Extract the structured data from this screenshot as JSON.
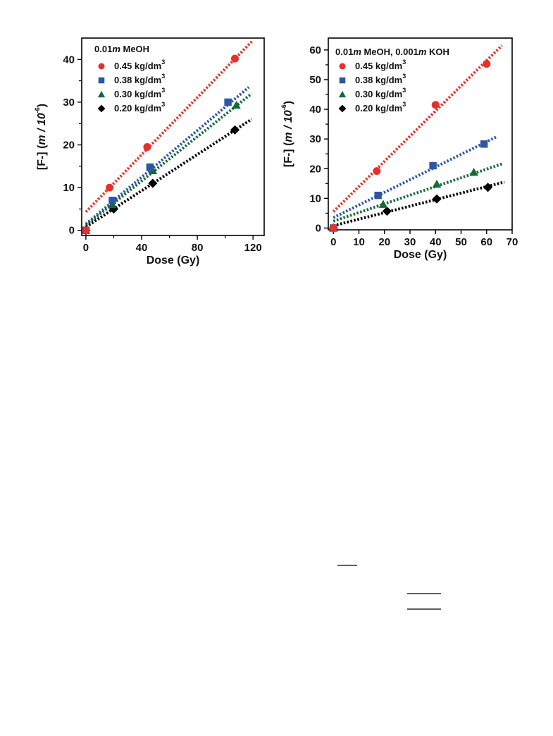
{
  "chart_data": [
    {
      "type": "scatter",
      "title": "",
      "xlabel": "Dose (Gy)",
      "ylabel_main": "[F-]",
      "ylabel_unit": "(m / 10",
      "ylabel_exp": "-6",
      "ylabel_close": ")",
      "xlim": [
        -3,
        128
      ],
      "ylim": [
        -1.2,
        45
      ],
      "xticks": [
        0,
        40,
        80,
        120
      ],
      "yticks": [
        0,
        10,
        20,
        30,
        40
      ],
      "grid": false,
      "legend_position": "top-left",
      "legend_title_prefix": "0.01",
      "legend_title_italic": "m",
      "legend_title_suffix": " MeOH",
      "series": [
        {
          "name": "0.45 kg/dm",
          "name_sup": "3",
          "color": "#e8302a",
          "marker": "circle",
          "x": [
            0,
            17,
            44,
            107
          ],
          "y": [
            0,
            10,
            19.5,
            40.2
          ],
          "fit": {
            "x": [
              0,
              120
            ],
            "y": [
              4.3,
              44.5
            ]
          }
        },
        {
          "name": "0.38 kg/dm",
          "name_sup": "3",
          "color": "#2f55a4",
          "marker": "square",
          "x": [
            0,
            19,
            46,
            102
          ],
          "y": [
            0,
            7,
            14.8,
            30
          ],
          "fit": {
            "x": [
              0,
              117
            ],
            "y": [
              1.5,
              33.5
            ]
          }
        },
        {
          "name": "0.30 kg/dm",
          "name_sup": "3",
          "color": "#17693a",
          "marker": "triangle",
          "x": [
            0,
            19,
            48,
            108
          ],
          "y": [
            0,
            6,
            14,
            29.3
          ],
          "fit": {
            "x": [
              0,
              119
            ],
            "y": [
              1.2,
              32
            ]
          }
        },
        {
          "name": "0.20 kg/dm",
          "name_sup": "3",
          "color": "#000000",
          "marker": "diamond",
          "x": [
            0,
            20,
            48,
            107
          ],
          "y": [
            0,
            5,
            11,
            23.5
          ],
          "fit": {
            "x": [
              0,
              119
            ],
            "y": [
              0.8,
              26
            ]
          }
        }
      ]
    },
    {
      "type": "scatter",
      "title": "",
      "xlabel": "Dose (Gy)",
      "ylabel_main": "[F-]",
      "ylabel_unit": "(m / 10",
      "ylabel_exp": "-6",
      "ylabel_close": ")",
      "xlim": [
        -2,
        70
      ],
      "ylim": [
        -0.6,
        64
      ],
      "xticks": [
        0,
        10,
        20,
        30,
        40,
        50,
        60,
        70
      ],
      "yticks": [
        0,
        10,
        20,
        30,
        40,
        50,
        60
      ],
      "grid": false,
      "legend_position": "top-left",
      "legend_title_prefix": "0.01",
      "legend_title_italic": "m",
      "legend_title_suffix": " MeOH, 0.001",
      "legend_title_italic2": "m",
      "legend_title_suffix2": " KOH",
      "series": [
        {
          "name": "0.45 kg/dm",
          "name_sup": "3",
          "color": "#e8302a",
          "marker": "circle",
          "x": [
            0,
            17,
            40,
            60
          ],
          "y": [
            0,
            19.2,
            41.5,
            55.3
          ],
          "fit": {
            "x": [
              0,
              66
            ],
            "y": [
              5.5,
              61.5
            ]
          }
        },
        {
          "name": "0.38 kg/dm",
          "name_sup": "3",
          "color": "#2f55a4",
          "marker": "square",
          "x": [
            0,
            17.5,
            39,
            59
          ],
          "y": [
            0,
            11,
            21,
            28.3
          ],
          "fit": {
            "x": [
              0,
              64
            ],
            "y": [
              3.5,
              30.8
            ]
          }
        },
        {
          "name": "0.30 kg/dm",
          "name_sup": "3",
          "color": "#17693a",
          "marker": "triangle",
          "x": [
            0,
            19.5,
            40.5,
            55
          ],
          "y": [
            0,
            8,
            14.8,
            18.8
          ],
          "fit": {
            "x": [
              0,
              66
            ],
            "y": [
              2.3,
              21.6
            ]
          }
        },
        {
          "name": "0.20 kg/dm",
          "name_sup": "3",
          "color": "#000000",
          "marker": "diamond",
          "x": [
            0,
            21,
            40.5,
            60.5
          ],
          "y": [
            0,
            5.7,
            9.8,
            13.7
          ],
          "fit": {
            "x": [
              0,
              67
            ],
            "y": [
              0.8,
              15.5
            ]
          }
        }
      ]
    }
  ]
}
